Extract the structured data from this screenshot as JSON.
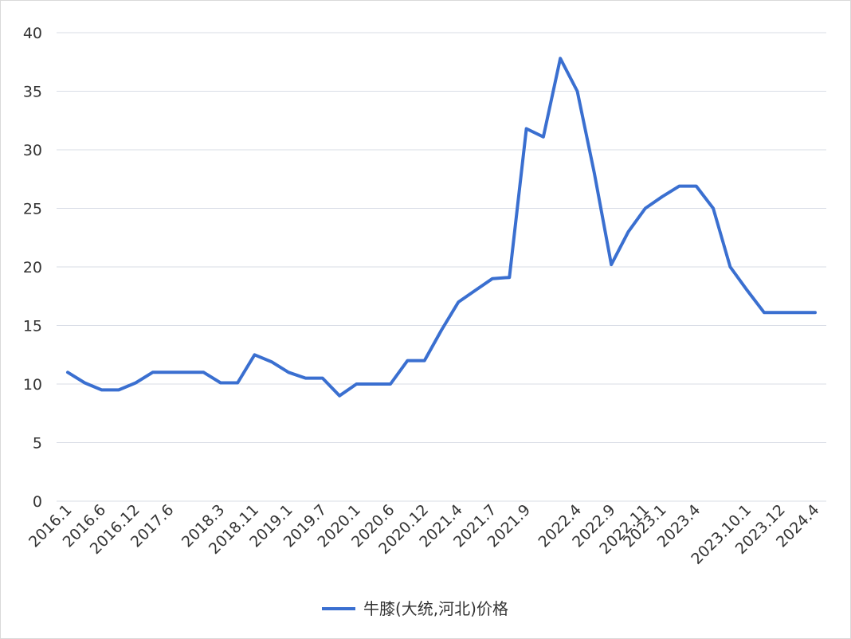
{
  "chart_data": {
    "type": "line",
    "title": "",
    "xlabel": "",
    "ylabel": "",
    "ylim": [
      0,
      40
    ],
    "yticks": [
      "0",
      "5",
      "10",
      "15",
      "20",
      "25",
      "30",
      "35",
      "40"
    ],
    "grid": true,
    "legend_position": "bottom",
    "x": [
      "2016.1",
      "2016.4",
      "2016.6",
      "2016.9",
      "2016.12",
      "2017.3",
      "2017.6",
      "2017.9",
      "2017.12",
      "2018.3",
      "2018.7",
      "2018.11",
      "2018.12",
      "2019.1",
      "2019.4",
      "2019.7",
      "2019.10",
      "2020.1",
      "2020.3",
      "2020.6",
      "2020.9",
      "2020.12",
      "2021.2",
      "2021.4",
      "2021.5",
      "2021.7",
      "2021.8",
      "2021.9",
      "2021.10",
      "2022.2",
      "2022.4",
      "2022.7",
      "2022.9",
      "2022.10",
      "2022.11",
      "2023.1",
      "2023.2",
      "2023.4",
      "2023.6",
      "2023.8",
      "2023.10.1",
      "2023.11",
      "2023.12",
      "2024.2",
      "2024.4"
    ],
    "x_tick_labels": [
      "2016.1",
      "2016.6",
      "2016.12",
      "2017.6",
      "2018.3",
      "2018.11",
      "2019.1",
      "2019.7",
      "2020.1",
      "2020.6",
      "2020.12",
      "2021.4",
      "2021.7",
      "2021.9",
      "2022.4",
      "2022.9",
      "2022.11",
      "2023.1",
      "2023.4",
      "2023.10.1",
      "2023.12",
      "2024.4"
    ],
    "series": [
      {
        "name": "牛膝(大统,河北)价格",
        "color": "#3a6fd0",
        "values": [
          11,
          10.1,
          9.5,
          9.5,
          10.1,
          11,
          11,
          11,
          11,
          10.1,
          10.1,
          12.5,
          11.9,
          11,
          10.5,
          10.5,
          9,
          10,
          10,
          10,
          12,
          12,
          14.6,
          17,
          18,
          19,
          19.1,
          31.8,
          31.1,
          37.8,
          35,
          28,
          20.2,
          23,
          25,
          26,
          26.9,
          26.9,
          25,
          20,
          18,
          16.1,
          16.1,
          16.1,
          16.1
        ]
      }
    ]
  }
}
